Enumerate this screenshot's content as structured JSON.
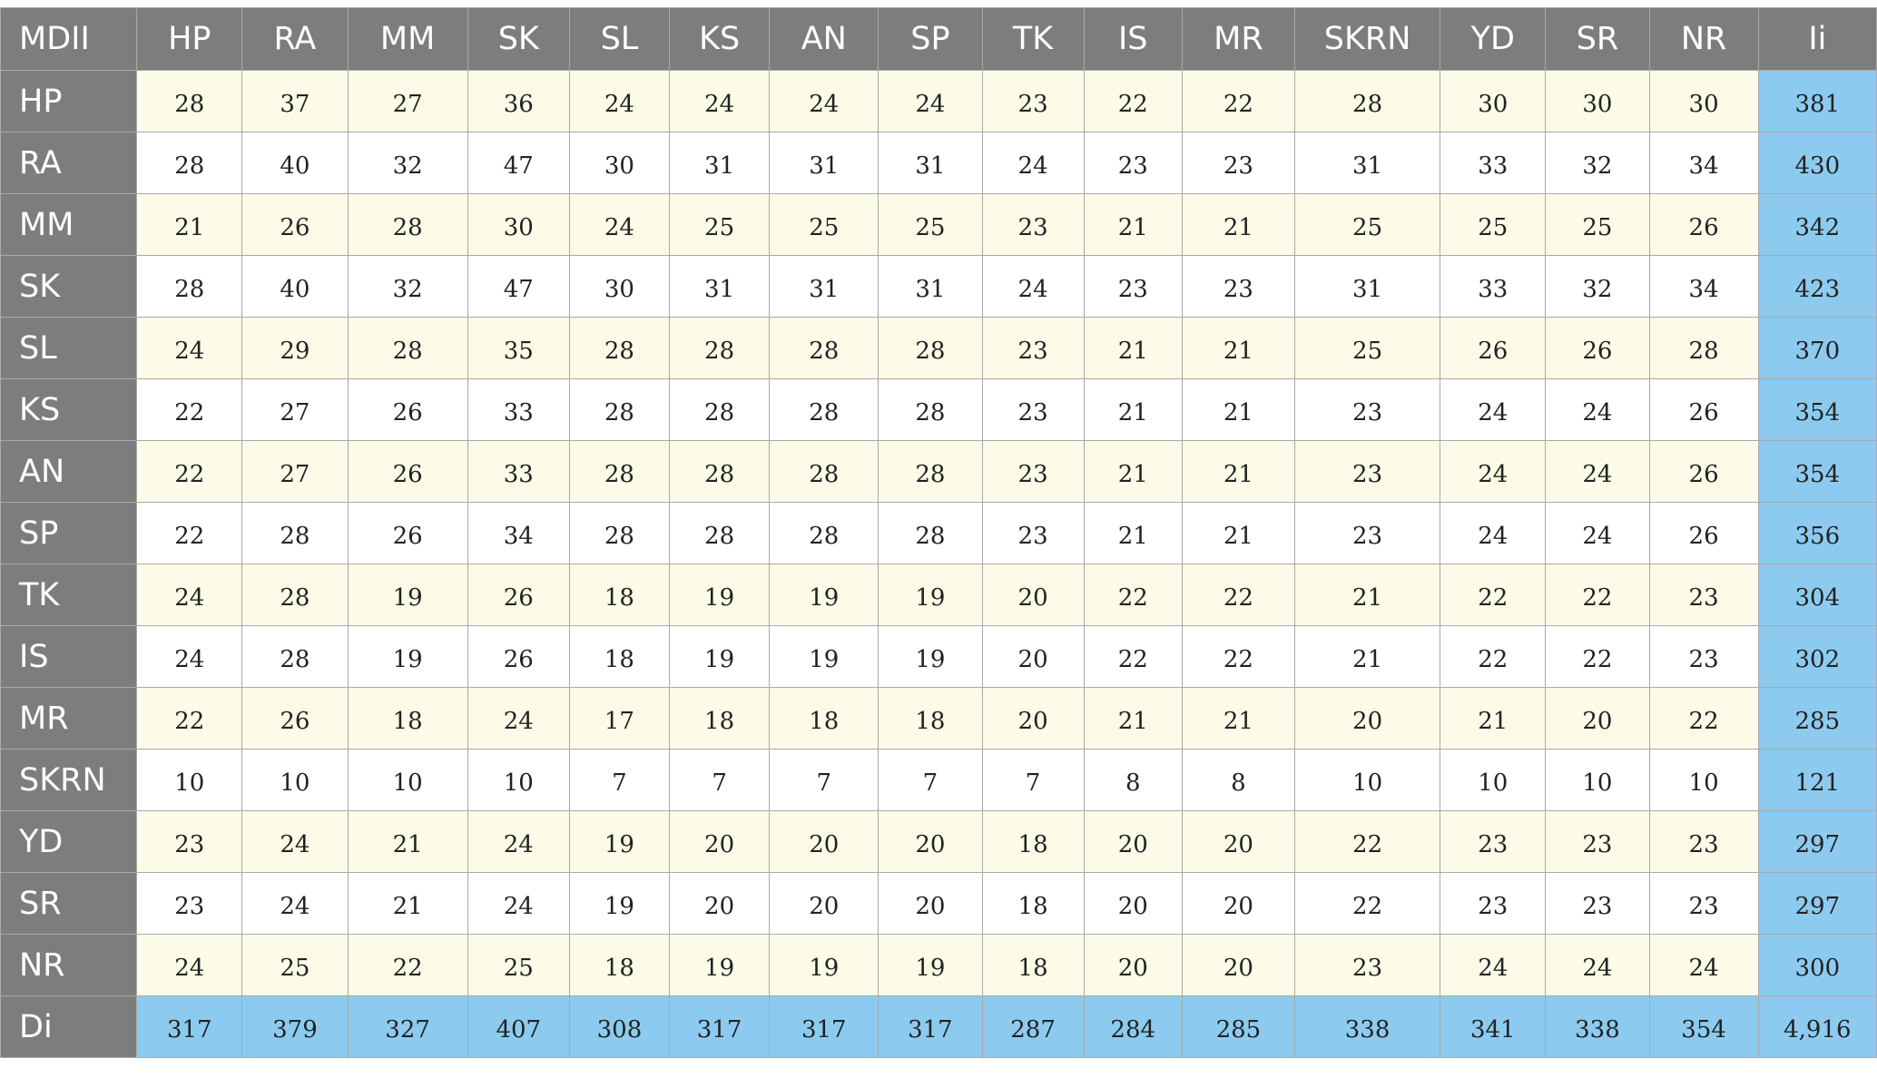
{
  "table": {
    "corner_label": "MDII",
    "total_label": "Ii",
    "columns": [
      "HP",
      "RA",
      "MM",
      "SK",
      "SL",
      "KS",
      "AN",
      "SP",
      "TK",
      "IS",
      "MR",
      "SKRN",
      "YD",
      "SR",
      "NR"
    ],
    "rows": [
      {
        "label": "HP",
        "values": [
          "28",
          "37",
          "27",
          "36",
          "24",
          "24",
          "24",
          "24",
          "23",
          "22",
          "22",
          "28",
          "30",
          "30",
          "30"
        ],
        "total": "381"
      },
      {
        "label": "RA",
        "values": [
          "28",
          "40",
          "32",
          "47",
          "30",
          "31",
          "31",
          "31",
          "24",
          "23",
          "23",
          "31",
          "33",
          "32",
          "34"
        ],
        "total": "430"
      },
      {
        "label": "MM",
        "values": [
          "21",
          "26",
          "28",
          "30",
          "24",
          "25",
          "25",
          "25",
          "23",
          "21",
          "21",
          "25",
          "25",
          "25",
          "26"
        ],
        "total": "342"
      },
      {
        "label": "SK",
        "values": [
          "28",
          "40",
          "32",
          "47",
          "30",
          "31",
          "31",
          "31",
          "24",
          "23",
          "23",
          "31",
          "33",
          "32",
          "34"
        ],
        "total": "423"
      },
      {
        "label": "SL",
        "values": [
          "24",
          "29",
          "28",
          "35",
          "28",
          "28",
          "28",
          "28",
          "23",
          "21",
          "21",
          "25",
          "26",
          "26",
          "28"
        ],
        "total": "370"
      },
      {
        "label": "KS",
        "values": [
          "22",
          "27",
          "26",
          "33",
          "28",
          "28",
          "28",
          "28",
          "23",
          "21",
          "21",
          "23",
          "24",
          "24",
          "26"
        ],
        "total": "354"
      },
      {
        "label": "AN",
        "values": [
          "22",
          "27",
          "26",
          "33",
          "28",
          "28",
          "28",
          "28",
          "23",
          "21",
          "21",
          "23",
          "24",
          "24",
          "26"
        ],
        "total": "354"
      },
      {
        "label": "SP",
        "values": [
          "22",
          "28",
          "26",
          "34",
          "28",
          "28",
          "28",
          "28",
          "23",
          "21",
          "21",
          "23",
          "24",
          "24",
          "26"
        ],
        "total": "356"
      },
      {
        "label": "TK",
        "values": [
          "24",
          "28",
          "19",
          "26",
          "18",
          "19",
          "19",
          "19",
          "20",
          "22",
          "22",
          "21",
          "22",
          "22",
          "23"
        ],
        "total": "304"
      },
      {
        "label": "IS",
        "values": [
          "24",
          "28",
          "19",
          "26",
          "18",
          "19",
          "19",
          "19",
          "20",
          "22",
          "22",
          "21",
          "22",
          "22",
          "23"
        ],
        "total": "302"
      },
      {
        "label": "MR",
        "values": [
          "22",
          "26",
          "18",
          "24",
          "17",
          "18",
          "18",
          "18",
          "20",
          "21",
          "21",
          "20",
          "21",
          "20",
          "22"
        ],
        "total": "285"
      },
      {
        "label": "SKRN",
        "values": [
          "10",
          "10",
          "10",
          "10",
          "7",
          "7",
          "7",
          "7",
          "7",
          "8",
          "8",
          "10",
          "10",
          "10",
          "10"
        ],
        "total": "121"
      },
      {
        "label": "YD",
        "values": [
          "23",
          "24",
          "21",
          "24",
          "19",
          "20",
          "20",
          "20",
          "18",
          "20",
          "20",
          "22",
          "23",
          "23",
          "23"
        ],
        "total": "297"
      },
      {
        "label": "SR",
        "values": [
          "23",
          "24",
          "21",
          "24",
          "19",
          "20",
          "20",
          "20",
          "18",
          "20",
          "20",
          "22",
          "23",
          "23",
          "23"
        ],
        "total": "297"
      },
      {
        "label": "NR",
        "values": [
          "24",
          "25",
          "22",
          "25",
          "18",
          "19",
          "19",
          "19",
          "18",
          "20",
          "20",
          "23",
          "24",
          "24",
          "24"
        ],
        "total": "300"
      }
    ],
    "di_row": {
      "label": "Di",
      "values": [
        "317",
        "379",
        "327",
        "407",
        "308",
        "317",
        "317",
        "317",
        "287",
        "284",
        "285",
        "338",
        "341",
        "338",
        "354"
      ],
      "total": "4,916"
    }
  },
  "colors": {
    "header_bg": "#7d7d7d",
    "odd_row_bg": "#fbfbe8",
    "even_row_bg": "#ffffff",
    "total_bg": "#8ccbef",
    "border": "#a9a9a9"
  }
}
